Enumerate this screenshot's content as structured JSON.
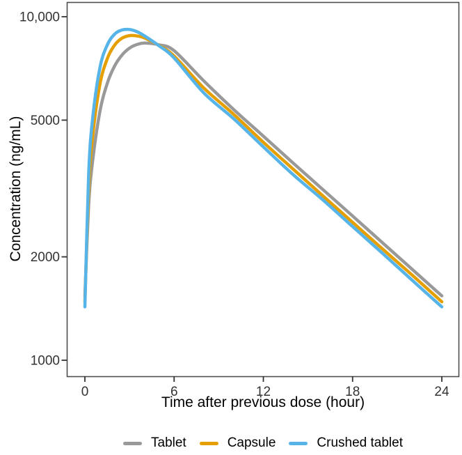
{
  "figure": {
    "background": "#ffffff",
    "panel_border_color": "#4d4d4d",
    "tick_color": "#333333",
    "tick_label_color": "#333333",
    "axis_title_color": "#000000"
  },
  "chart_data": {
    "type": "line",
    "title": "",
    "xlabel": "Time after previous dose (hour)",
    "ylabel": "Concentration (ng/mL)",
    "x_scale": "linear",
    "y_scale": "log10",
    "xlim": [
      0,
      24
    ],
    "ylim": [
      900,
      11000
    ],
    "x_ticks": [
      {
        "value": 0,
        "label": "0"
      },
      {
        "value": 6,
        "label": "6"
      },
      {
        "value": 12,
        "label": "12"
      },
      {
        "value": 18,
        "label": "18"
      },
      {
        "value": 24,
        "label": "24"
      }
    ],
    "y_ticks": [
      {
        "value": 1000,
        "label": "1000"
      },
      {
        "value": 2000,
        "label": "2000"
      },
      {
        "value": 5000,
        "label": "5000"
      },
      {
        "value": 10000,
        "label": "10,000"
      }
    ],
    "grid": false,
    "legend_position": "bottom",
    "line_width": 4.5,
    "x": [
      0,
      0.25,
      0.5,
      1,
      1.5,
      2,
      2.5,
      3,
      3.5,
      4,
      5,
      6,
      8,
      10,
      12,
      14,
      16,
      18,
      20,
      22,
      24
    ],
    "series": [
      {
        "name": "Tablet",
        "color": "#999999",
        "tmax_h": 4.2,
        "cmax_ng_ml": 8380,
        "trough_ng_ml": 1540,
        "values": [
          1540,
          2800,
          3740,
          5270,
          6390,
          7190,
          7740,
          8100,
          8300,
          8380,
          8280,
          7960,
          6500,
          5370,
          4490,
          3750,
          3140,
          2630,
          2200,
          1840,
          1540
        ]
      },
      {
        "name": "Capsule",
        "color": "#E69F00",
        "tmax_h": 3.2,
        "cmax_ng_ml": 8810,
        "trough_ng_ml": 1480,
        "values": [
          1480,
          3100,
          4400,
          6320,
          7540,
          8270,
          8660,
          8810,
          8790,
          8680,
          8240,
          7680,
          6200,
          5200,
          4310,
          3600,
          3010,
          2520,
          2110,
          1770,
          1480
        ]
      },
      {
        "name": "Crushed tablet",
        "color": "#56B4E9",
        "tmax_h": 2.9,
        "cmax_ng_ml": 9180,
        "trough_ng_ml": 1430,
        "values": [
          1430,
          3430,
          4960,
          7070,
          8270,
          8900,
          9150,
          9180,
          9050,
          8800,
          8220,
          7580,
          6000,
          5050,
          4180,
          3470,
          2930,
          2450,
          2050,
          1710,
          1430
        ]
      }
    ]
  }
}
